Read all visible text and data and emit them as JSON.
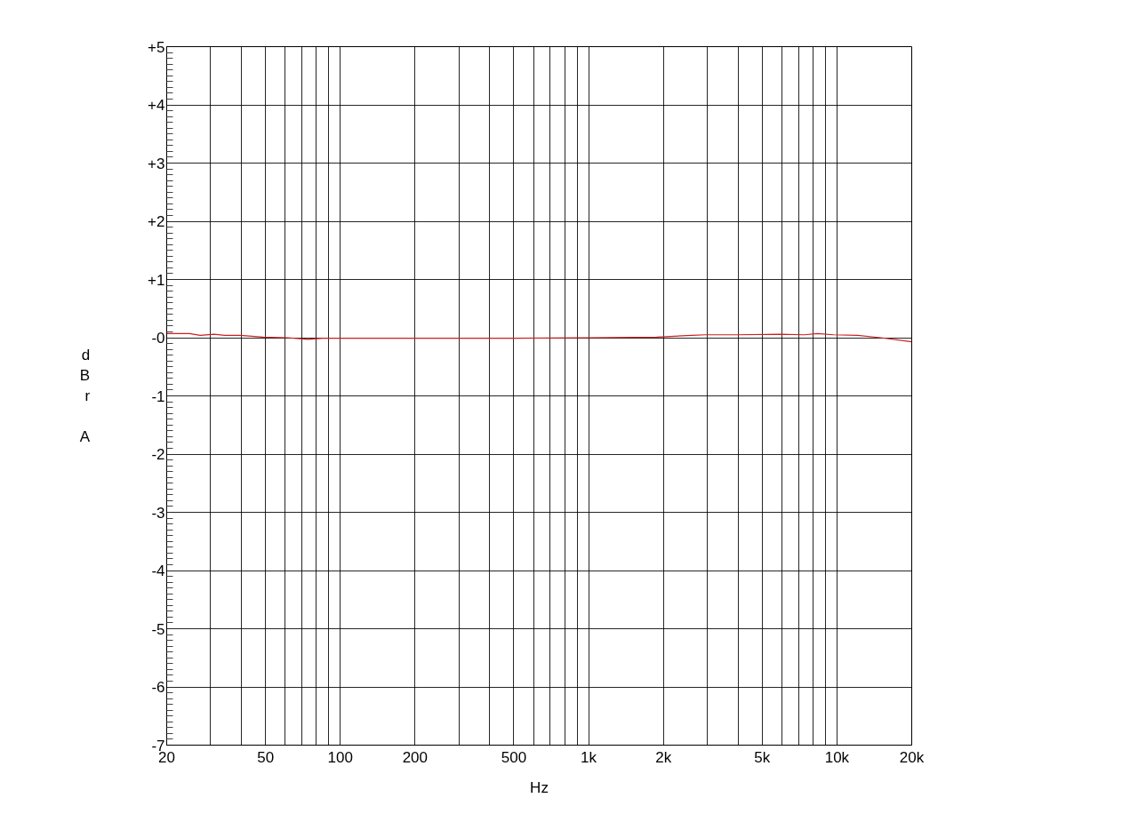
{
  "chart_data": {
    "type": "line",
    "xlabel": "Hz",
    "ylabel": "dBr A",
    "log": "x",
    "grid": true,
    "marker": "none",
    "line_style": "solid",
    "xlim": [
      20,
      20000
    ],
    "ylim": [
      -7,
      5
    ],
    "xticks": [
      20,
      {
        "value": 30,
        "label": null
      },
      {
        "value": 40,
        "label": null
      },
      50,
      {
        "value": 60,
        "label": null
      },
      {
        "value": 70,
        "label": null
      },
      {
        "value": 80,
        "label": null
      },
      {
        "value": 90,
        "label": null
      },
      100,
      200,
      {
        "value": 300,
        "label": null
      },
      {
        "value": 400,
        "label": null
      },
      500,
      {
        "value": 600,
        "label": null
      },
      {
        "value": 700,
        "label": null
      },
      {
        "value": 800,
        "label": null
      },
      {
        "value": 900,
        "label": null
      },
      {
        "value": 1000,
        "label": "1k"
      },
      {
        "value": 2000,
        "label": "2k"
      },
      {
        "value": 3000,
        "label": null
      },
      {
        "value": 4000,
        "label": null
      },
      {
        "value": 5000,
        "label": "5k"
      },
      {
        "value": 6000,
        "label": null
      },
      {
        "value": 7000,
        "label": null
      },
      {
        "value": 8000,
        "label": null
      },
      {
        "value": 9000,
        "label": null
      },
      {
        "value": 10000,
        "label": "10k"
      },
      {
        "value": 20000,
        "label": "20k"
      }
    ],
    "yticks": [
      {
        "value": 5,
        "label": "+5"
      },
      {
        "value": 4,
        "label": "+4"
      },
      {
        "value": 3,
        "label": "+3"
      },
      {
        "value": 2,
        "label": "+2"
      },
      {
        "value": 1,
        "label": "+1"
      },
      {
        "value": 0,
        "label": "-0"
      },
      -1,
      -2,
      -3,
      -4,
      -5,
      -6,
      -7
    ],
    "x": [
      20,
      24.7,
      27.3,
      31,
      34.3,
      39.5,
      49,
      61,
      74,
      85,
      115,
      200,
      500,
      1000,
      1876,
      2607,
      2946,
      3930,
      5920,
      7395,
      8360,
      9690,
      12100,
      14970,
      20000
    ],
    "series": [
      {
        "color": "#cc1f1f",
        "values": [
          0.07,
          0.07,
          0.04,
          0.06,
          0.04,
          0.04,
          0.01,
          0.0,
          -0.03,
          -0.01,
          -0.01,
          -0.01,
          -0.01,
          0.0,
          0.01,
          0.04,
          0.05,
          0.05,
          0.06,
          0.05,
          0.07,
          0.05,
          0.04,
          0.0,
          -0.07
        ]
      }
    ]
  }
}
